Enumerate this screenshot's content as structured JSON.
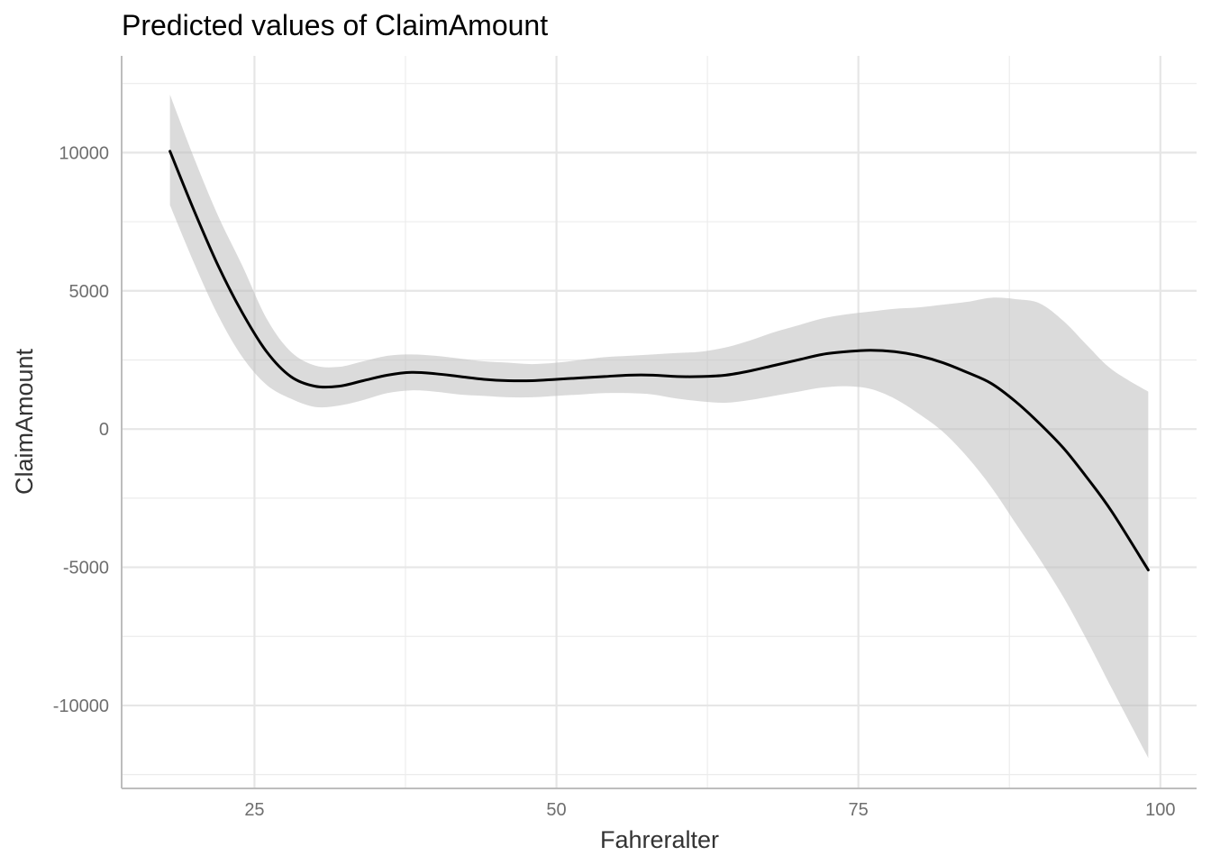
{
  "chart_data": {
    "type": "line",
    "title": "Predicted values of ClaimAmount",
    "xlabel": "Fahreralter",
    "ylabel": "ClaimAmount",
    "xlim": [
      14,
      103
    ],
    "ylim": [
      -13000,
      13500
    ],
    "x_ticks": [
      25,
      50,
      75,
      100
    ],
    "x_tick_labels": [
      "25",
      "50",
      "75",
      "100"
    ],
    "x_minor_ticks": [
      37.5,
      62.5,
      87.5
    ],
    "y_ticks": [
      -10000,
      -5000,
      0,
      5000,
      10000
    ],
    "y_tick_labels": [
      "-10000",
      "-5000",
      "0",
      "5000",
      "10000"
    ],
    "y_minor_ticks": [
      -12500,
      -7500,
      -2500,
      2500,
      7500,
      12500
    ],
    "grid": true,
    "series": [
      {
        "style": "line-with-ci-ribbon",
        "color": "#000000",
        "ribbon_color": "#bdbdbd",
        "x": [
          18,
          20,
          22,
          24,
          26,
          28,
          30,
          32,
          34,
          36,
          38,
          40,
          42,
          44,
          46,
          48,
          50,
          52,
          54,
          56,
          58,
          60,
          62,
          64,
          66,
          68,
          70,
          72,
          74,
          76,
          78,
          80,
          82,
          84,
          86,
          88,
          90,
          92,
          94,
          96,
          99
        ],
        "y": [
          10050,
          7900,
          5900,
          4200,
          2800,
          1900,
          1550,
          1550,
          1750,
          1950,
          2050,
          2000,
          1900,
          1800,
          1750,
          1750,
          1800,
          1850,
          1900,
          1950,
          1950,
          1900,
          1900,
          1950,
          2100,
          2300,
          2500,
          2700,
          2800,
          2850,
          2800,
          2650,
          2400,
          2050,
          1650,
          1000,
          200,
          -700,
          -1800,
          -3000,
          -5100
        ],
        "lower": [
          8100,
          6000,
          4100,
          2600,
          1600,
          1100,
          800,
          850,
          1050,
          1300,
          1400,
          1350,
          1250,
          1200,
          1150,
          1150,
          1200,
          1250,
          1300,
          1300,
          1250,
          1100,
          1000,
          950,
          1050,
          1200,
          1350,
          1500,
          1550,
          1450,
          1100,
          550,
          -100,
          -1000,
          -2100,
          -3400,
          -4700,
          -6100,
          -7700,
          -9400,
          -11900
        ],
        "upper": [
          12100,
          9800,
          7700,
          5900,
          4000,
          2800,
          2300,
          2250,
          2450,
          2650,
          2700,
          2650,
          2550,
          2450,
          2400,
          2350,
          2400,
          2500,
          2600,
          2650,
          2700,
          2750,
          2800,
          2950,
          3200,
          3500,
          3750,
          4000,
          4150,
          4250,
          4350,
          4400,
          4500,
          4600,
          4750,
          4700,
          4550,
          3900,
          3000,
          2150,
          1350
        ]
      }
    ]
  }
}
